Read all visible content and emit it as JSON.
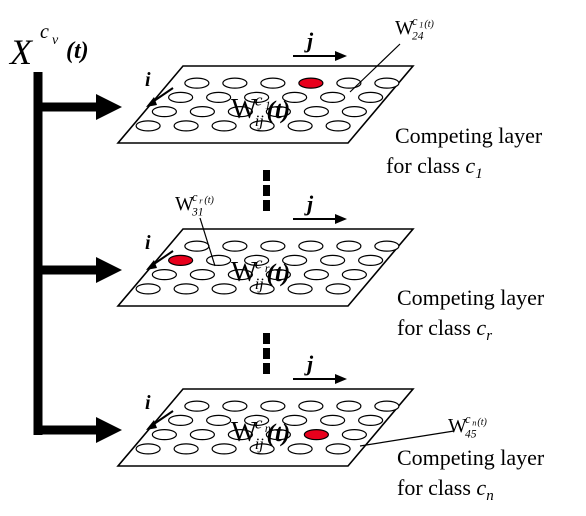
{
  "input_label": {
    "base": "X",
    "sup_base": "c",
    "sup_sub": "v",
    "suffix": "(t)"
  },
  "layers": [
    {
      "id": "layer-1",
      "weight": {
        "base": "W",
        "sup_base": "c",
        "sup_sub": "1",
        "sub": "ij",
        "suffix": "(t)"
      },
      "winner": {
        "base": "W",
        "sup_base": "c",
        "sup_sub": "1",
        "sub": "24",
        "suffix": "(t)"
      },
      "caption_line1": "Competing layer",
      "caption_prefix": "for class ",
      "class_base": "c",
      "class_sub": "1"
    },
    {
      "id": "layer-r",
      "weight": {
        "base": "W",
        "sup_base": "c",
        "sup_sub": "r",
        "sub": "ij",
        "suffix": "(t)"
      },
      "winner": {
        "base": "W",
        "sup_base": "c",
        "sup_sub": "r",
        "sub": "31",
        "suffix": "(t)"
      },
      "caption_line1": "Competing layer",
      "caption_prefix": "for class ",
      "class_base": "c",
      "class_sub": "r"
    },
    {
      "id": "layer-n",
      "weight": {
        "base": "W",
        "sup_base": "c",
        "sup_sub": "n",
        "sub": "ij",
        "suffix": "(t)"
      },
      "winner": {
        "base": "W",
        "sup_base": "c",
        "sup_sub": "n",
        "sub": "45",
        "suffix": "(t)"
      },
      "caption_line1": "Competing layer",
      "caption_prefix": "for class ",
      "class_base": "c",
      "class_sub": "n"
    }
  ],
  "axis_labels": {
    "row": "i",
    "col": "j"
  },
  "colors": {
    "line": "#000000",
    "node_fill": "#ffffff",
    "winner_fill": "#e8001c",
    "background": "#ffffff"
  }
}
